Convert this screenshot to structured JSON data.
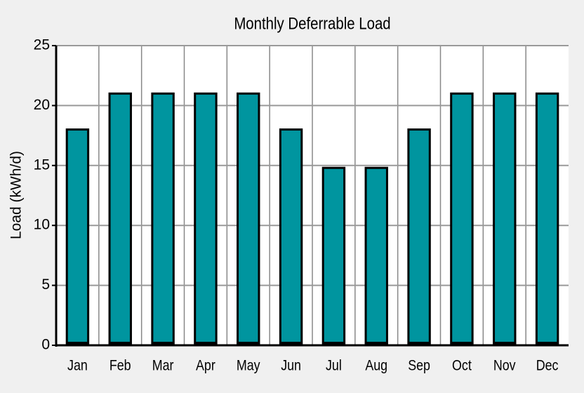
{
  "chart_data": {
    "type": "bar",
    "title": "Monthly Deferrable Load",
    "y_label": "Load (kWh/d)",
    "categories": [
      "Jan",
      "Feb",
      "Mar",
      "Apr",
      "May",
      "Jun",
      "Jul",
      "Aug",
      "Sep",
      "Oct",
      "Nov",
      "Dec"
    ],
    "values": [
      18,
      21,
      21,
      21,
      21,
      18,
      14.8,
      14.8,
      18,
      21,
      21,
      21
    ],
    "color": "#00959f",
    "ylim": [
      0,
      25
    ],
    "yticks": [
      0,
      5,
      10,
      15,
      20,
      25
    ],
    "grid": true
  }
}
